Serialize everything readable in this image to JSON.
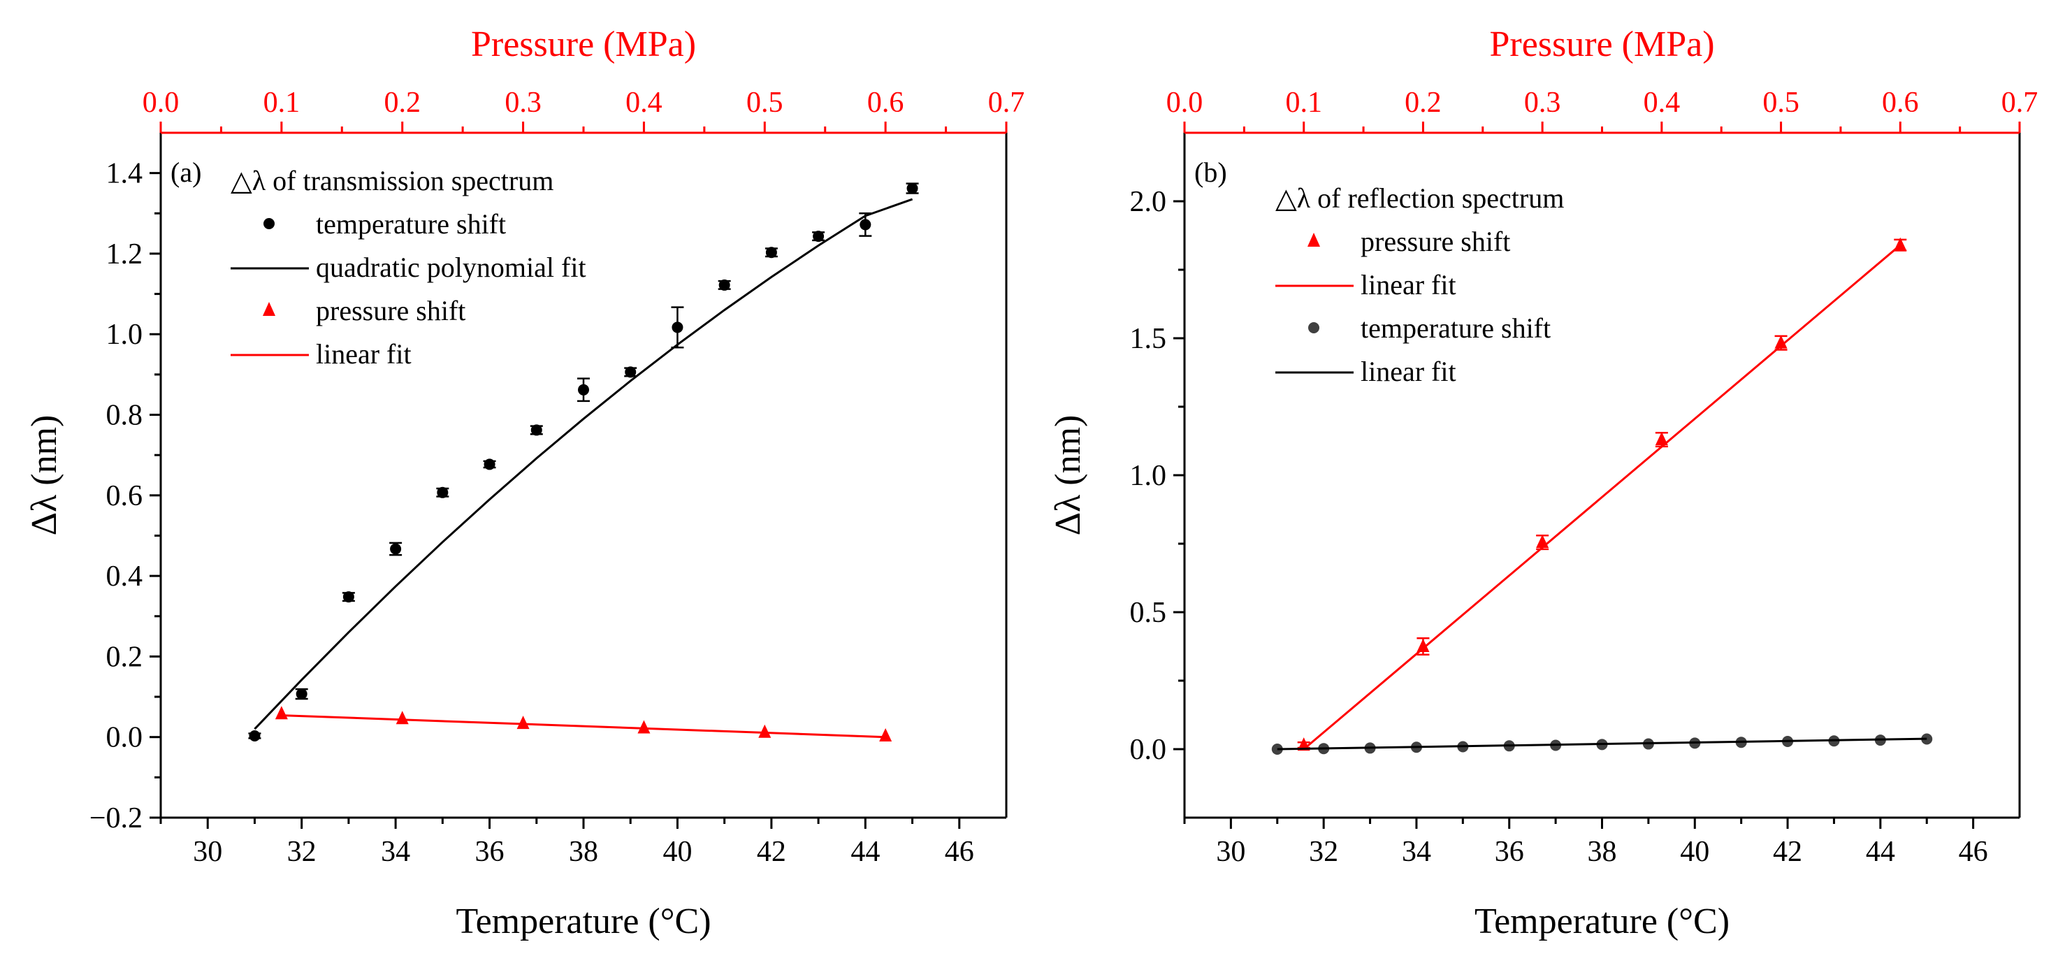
{
  "chart_data": [
    {
      "type": "scatter",
      "panel_label": "(a)",
      "ylabel": "Δλ (nm)",
      "xlabel": "Temperature (°C)",
      "x2label": "Pressure (MPa)",
      "xlim": [
        29,
        47
      ],
      "x2lim": [
        0.0,
        0.7
      ],
      "ylim": [
        -0.2,
        1.5
      ],
      "xticks": [
        30,
        32,
        34,
        36,
        38,
        40,
        42,
        44,
        46
      ],
      "x2ticks": [
        0.0,
        0.1,
        0.2,
        0.3,
        0.4,
        0.5,
        0.6,
        0.7
      ],
      "yticks": [
        -0.2,
        0.0,
        0.2,
        0.4,
        0.6,
        0.8,
        1.0,
        1.2,
        1.4
      ],
      "xtick_labels": [
        "30",
        "32",
        "34",
        "36",
        "38",
        "40",
        "42",
        "44",
        "46"
      ],
      "x2tick_labels": [
        "0.0",
        "0.1",
        "0.2",
        "0.3",
        "0.4",
        "0.5",
        "0.6",
        "0.7"
      ],
      "ytick_labels": [
        "−0.2",
        "0.0",
        "0.2",
        "0.4",
        "0.6",
        "0.8",
        "1.0",
        "1.2",
        "1.4"
      ],
      "legend_title": "△λ of transmission spectrum",
      "legend_placement": "top-left",
      "grid": false,
      "series": [
        {
          "name": "temperature shift",
          "axis": "bottom",
          "marker": "circle",
          "color": "#000000",
          "x": [
            31,
            32,
            33,
            34,
            35,
            36,
            37,
            38,
            39,
            40,
            41,
            42,
            43,
            44,
            45
          ],
          "y": [
            0.003,
            0.107,
            0.348,
            0.467,
            0.607,
            0.677,
            0.762,
            0.862,
            0.906,
            1.017,
            1.122,
            1.203,
            1.243,
            1.272,
            1.362
          ],
          "err": [
            0.006,
            0.012,
            0.01,
            0.015,
            0.01,
            0.008,
            0.01,
            0.028,
            0.01,
            0.05,
            0.01,
            0.01,
            0.01,
            0.028,
            0.012
          ]
        },
        {
          "name": "quadratic polynomial fit",
          "axis": "bottom",
          "line": true,
          "color": "#000000",
          "x": [
            31,
            32,
            33,
            34,
            35,
            36,
            37,
            38,
            39,
            40,
            41,
            42,
            43,
            44,
            45
          ],
          "y": [
            0.02,
            0.142,
            0.26,
            0.374,
            0.484,
            0.59,
            0.692,
            0.79,
            0.884,
            0.974,
            1.06,
            1.142,
            1.22,
            1.294,
            1.335
          ]
        },
        {
          "name": "pressure shift",
          "axis": "top",
          "marker": "triangle",
          "color": "#ff0000",
          "x": [
            0.1,
            0.2,
            0.3,
            0.4,
            0.5,
            0.6
          ],
          "y": [
            0.058,
            0.046,
            0.034,
            0.023,
            0.012,
            0.003
          ]
        },
        {
          "name": "linear fit",
          "axis": "top",
          "line": true,
          "color": "#ff0000",
          "x": [
            0.1,
            0.6
          ],
          "y": [
            0.054,
            0.0
          ]
        }
      ]
    },
    {
      "type": "scatter",
      "panel_label": "(b)",
      "ylabel": "Δλ (nm)",
      "xlabel": "Temperature (°C)",
      "x2label": "Pressure (MPa)",
      "xlim": [
        29,
        47
      ],
      "x2lim": [
        0.0,
        0.7
      ],
      "ylim": [
        -0.25,
        2.25
      ],
      "xticks": [
        30,
        32,
        34,
        36,
        38,
        40,
        42,
        44,
        46
      ],
      "x2ticks": [
        0.0,
        0.1,
        0.2,
        0.3,
        0.4,
        0.5,
        0.6,
        0.7
      ],
      "yticks": [
        0.0,
        0.5,
        1.0,
        1.5,
        2.0
      ],
      "xtick_labels": [
        "30",
        "32",
        "34",
        "36",
        "38",
        "40",
        "42",
        "44",
        "46"
      ],
      "x2tick_labels": [
        "0.0",
        "0.1",
        "0.2",
        "0.3",
        "0.4",
        "0.5",
        "0.6",
        "0.7"
      ],
      "ytick_labels": [
        "0.0",
        "0.5",
        "1.0",
        "1.5",
        "2.0"
      ],
      "legend_title": "△λ of reflection spectrum",
      "legend_placement": "top-left",
      "grid": false,
      "series": [
        {
          "name": "pressure shift",
          "axis": "top",
          "marker": "triangle",
          "color": "#ff0000",
          "x": [
            0.1,
            0.2,
            0.3,
            0.4,
            0.5,
            0.6
          ],
          "y": [
            0.015,
            0.375,
            0.755,
            1.13,
            1.483,
            1.84
          ],
          "err": [
            0.01,
            0.03,
            0.025,
            0.025,
            0.025,
            0.02
          ]
        },
        {
          "name": "linear fit",
          "axis": "top",
          "line": true,
          "color": "#ff0000",
          "x": [
            0.1,
            0.6
          ],
          "y": [
            0.0,
            1.84
          ]
        },
        {
          "name": "temperature shift",
          "axis": "bottom",
          "marker": "circle",
          "color": "#404040",
          "x": [
            31,
            32,
            33,
            34,
            35,
            36,
            37,
            38,
            39,
            40,
            41,
            42,
            43,
            44,
            45
          ],
          "y": [
            0.0,
            0.002,
            0.004,
            0.007,
            0.009,
            0.012,
            0.014,
            0.017,
            0.019,
            0.022,
            0.025,
            0.028,
            0.03,
            0.033,
            0.037
          ]
        },
        {
          "name": "linear fit",
          "axis": "bottom",
          "line": true,
          "color": "#000000",
          "x": [
            31,
            45
          ],
          "y": [
            0.0,
            0.038
          ]
        }
      ]
    }
  ]
}
